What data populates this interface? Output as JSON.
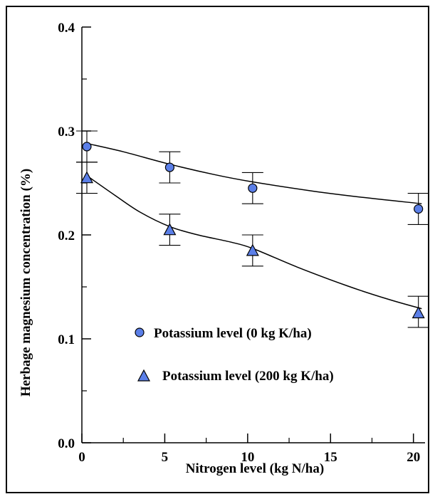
{
  "chart_data": {
    "type": "scatter",
    "xlabel": "Nitrogen level (kg N/ha)",
    "ylabel": "Herbage magnesium concentration (%)",
    "xlim": [
      0,
      20.7
    ],
    "ylim": [
      0,
      0.4
    ],
    "xticks": [
      0,
      5,
      10,
      15,
      20
    ],
    "xtick_labels": [
      "0",
      "5",
      "10",
      "15",
      "20"
    ],
    "xminor": [
      2.5,
      7.5,
      12.5,
      17.5
    ],
    "yticks": [
      0.0,
      0.1,
      0.2,
      0.3,
      0.4
    ],
    "ytick_labels": [
      "0.0",
      "0.1",
      "0.2",
      "0.3",
      "0.4"
    ],
    "yminor": [
      0.05,
      0.15,
      0.25,
      0.35
    ],
    "grid": false,
    "legend_position": "center",
    "series": [
      {
        "name": "Potassium level (0 kg K/ha)",
        "marker": "circle",
        "color": "#5b7fe8",
        "x": [
          0.3,
          5.3,
          10.3,
          20.3
        ],
        "y": [
          0.285,
          0.265,
          0.245,
          0.225
        ],
        "err_low": [
          0.27,
          0.25,
          0.23,
          0.21
        ],
        "err_high": [
          0.3,
          0.28,
          0.26,
          0.24
        ],
        "fit_x": [
          0.3,
          2.5,
          5.3,
          8,
          10.3,
          14,
          17,
          20.5
        ],
        "fit_y": [
          0.288,
          0.28,
          0.268,
          0.258,
          0.251,
          0.242,
          0.236,
          0.23
        ]
      },
      {
        "name": "Potassium level (200 kg K/ha)",
        "marker": "triangle",
        "color": "#5b7fe8",
        "x": [
          0.3,
          5.3,
          10.3,
          20.3
        ],
        "y": [
          0.255,
          0.205,
          0.185,
          0.125
        ],
        "err_low": [
          0.24,
          0.19,
          0.17,
          0.111
        ],
        "err_high": [
          0.27,
          0.22,
          0.2,
          0.141
        ],
        "fit_x": [
          0.3,
          2,
          3.5,
          5.3,
          7,
          9,
          10.3,
          13,
          16,
          18.5,
          20.5
        ],
        "fit_y": [
          0.257,
          0.238,
          0.222,
          0.208,
          0.2,
          0.193,
          0.187,
          0.169,
          0.151,
          0.138,
          0.129
        ]
      }
    ]
  }
}
